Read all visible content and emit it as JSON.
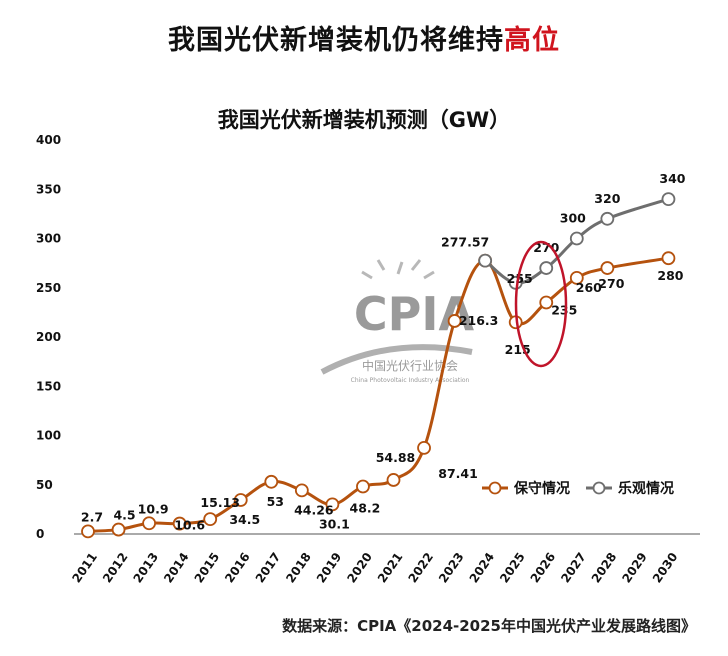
{
  "header": {
    "title_main": "我国光伏新增装机仍将维持",
    "title_highlight": "高位"
  },
  "footer": {
    "source": "数据来源：CPIA《2024-2025年中国光伏产业发展路线图》"
  },
  "watermark": {
    "logo": "CPIA",
    "name_cn": "中国光伏行业协会",
    "name_en": "China Photovoltaic Industry Association"
  },
  "colors": {
    "conservative": "#b5520e",
    "optimistic": "#6e6e6e",
    "highlight": "#d0141e",
    "circle": "#c0142a"
  },
  "chart_data": {
    "type": "line",
    "title": "我国光伏新增装机预测（GW）",
    "xlabel": "",
    "ylabel": "",
    "ylim": [
      0,
      400
    ],
    "yticks": [
      0,
      50,
      100,
      150,
      200,
      250,
      300,
      350,
      400
    ],
    "x": [
      "2011",
      "2012",
      "2013",
      "2014",
      "2015",
      "2016",
      "2017",
      "2018",
      "2019",
      "2020",
      "2021",
      "2022",
      "2023",
      "2024",
      "2025",
      "2026",
      "2027",
      "2028",
      "2029",
      "2030"
    ],
    "series": [
      {
        "name": "保守情况",
        "values": [
          2.7,
          4.5,
          10.9,
          10.6,
          15.13,
          34.5,
          53,
          44.26,
          30.1,
          48.2,
          54.88,
          87.41,
          216.3,
          277.57,
          215,
          235,
          260,
          270,
          null,
          280
        ],
        "labels": [
          "2.7",
          "4.5",
          "10.9",
          "10.6",
          "15.13",
          "34.5",
          "53",
          "44.26",
          "30.1",
          "48.2",
          "54.88",
          "87.41",
          "216.3",
          "277.57",
          "215",
          "235",
          "260",
          "270",
          "",
          "280"
        ]
      },
      {
        "name": "乐观情况",
        "values": [
          null,
          null,
          null,
          null,
          null,
          null,
          null,
          null,
          null,
          null,
          null,
          null,
          null,
          277.57,
          255,
          270,
          300,
          320,
          null,
          340
        ],
        "labels": [
          "",
          "",
          "",
          "",
          "",
          "",
          "",
          "",
          "",
          "",
          "",
          "",
          "",
          "",
          "255",
          "270",
          "300",
          "320",
          "",
          "340"
        ]
      }
    ],
    "grid": false,
    "legend": "bottom-right",
    "annotation": "2025年数值红色椭圆圈出"
  }
}
